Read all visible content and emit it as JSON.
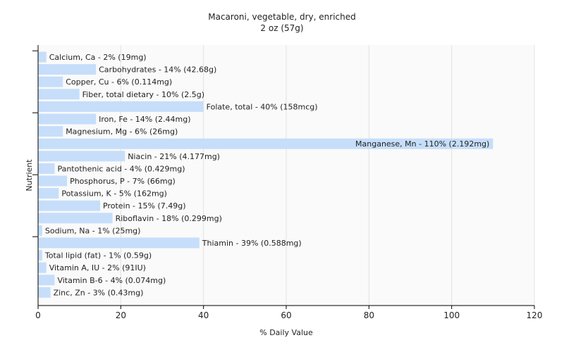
{
  "chart_data": {
    "type": "bar",
    "orientation": "horizontal",
    "title": "Macaroni, vegetable, dry, enriched",
    "subtitle": "2 oz (57g)",
    "xlabel": "% Daily Value",
    "ylabel": "Nutrient",
    "xlim": [
      0,
      120
    ],
    "xticks": [
      0,
      20,
      40,
      60,
      80,
      100,
      120
    ],
    "grid": true,
    "bar_color": "#c6defa",
    "categories": [
      "Calcium, Ca",
      "Carbohydrates",
      "Copper, Cu",
      "Fiber, total dietary",
      "Folate, total",
      "Iron, Fe",
      "Magnesium, Mg",
      "Manganese, Mn",
      "Niacin",
      "Pantothenic acid",
      "Phosphorus, P",
      "Potassium, K",
      "Protein",
      "Riboflavin",
      "Sodium, Na",
      "Thiamin",
      "Total lipid (fat)",
      "Vitamin A, IU",
      "Vitamin B-6",
      "Zinc, Zn"
    ],
    "values": [
      2,
      14,
      6,
      10,
      40,
      14,
      6,
      110,
      21,
      4,
      7,
      5,
      15,
      18,
      1,
      39,
      1,
      2,
      4,
      3
    ],
    "labels": [
      "Calcium, Ca - 2% (19mg)",
      "Carbohydrates - 14% (42.68g)",
      "Copper, Cu - 6% (0.114mg)",
      "Fiber, total dietary - 10% (2.5g)",
      "Folate, total - 40% (158mcg)",
      "Iron, Fe - 14% (2.44mg)",
      "Magnesium, Mg - 6% (26mg)",
      "Manganese, Mn - 110% (2.192mg)",
      "Niacin - 21% (4.177mg)",
      "Pantothenic acid - 4% (0.429mg)",
      "Phosphorus, P - 7% (66mg)",
      "Potassium, K - 5% (162mg)",
      "Protein - 15% (7.49g)",
      "Riboflavin - 18% (0.299mg)",
      "Sodium, Na - 1% (25mg)",
      "Thiamin - 39% (0.588mg)",
      "Total lipid (fat) - 1% (0.59g)",
      "Vitamin A, IU - 2% (91IU)",
      "Vitamin B-6 - 4% (0.074mg)",
      "Zinc, Zn - 3% (0.43mg)"
    ]
  }
}
